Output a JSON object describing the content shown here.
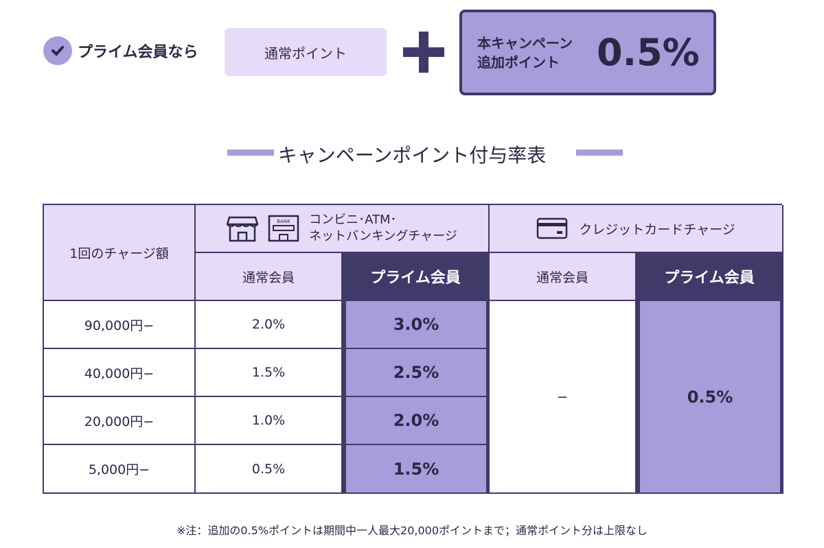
{
  "banner": {
    "prime_label": "プライム会員なら",
    "normal_points": "通常ポイント",
    "campaign_label_line1": "本キャンペーン",
    "campaign_label_line2": "追加ポイント",
    "campaign_rate": "0.5%"
  },
  "section_title": "キャンペーンポイント付与率表",
  "table": {
    "charge_header": "1回のチャージ額",
    "group1_line1": "コンビニ･ATM･",
    "group1_line2": "ネットバンキングチャージ",
    "group1_icon_bank_text": "BANK",
    "group2": "クレジットカードチャージ",
    "normal_member": "通常会員",
    "prime_member": "プライム会員",
    "rows": [
      {
        "amount": "90,000円−",
        "normal": "2.0%",
        "prime": "3.0%"
      },
      {
        "amount": "40,000円−",
        "normal": "1.5%",
        "prime": "2.5%"
      },
      {
        "amount": "20,000円−",
        "normal": "1.0%",
        "prime": "2.0%"
      },
      {
        "amount": "5,000円−",
        "normal": "0.5%",
        "prime": "1.5%"
      }
    ],
    "card_normal": "−",
    "card_prime": "0.5%"
  },
  "note": "※注：追加の0.5%ポイントは期間中一人最大20,000ポイントまで；通常ポイント分は上限なし",
  "colors": {
    "dark": "#3f3a68",
    "purple": "#a99cdb",
    "light": "#e6dcfa"
  }
}
